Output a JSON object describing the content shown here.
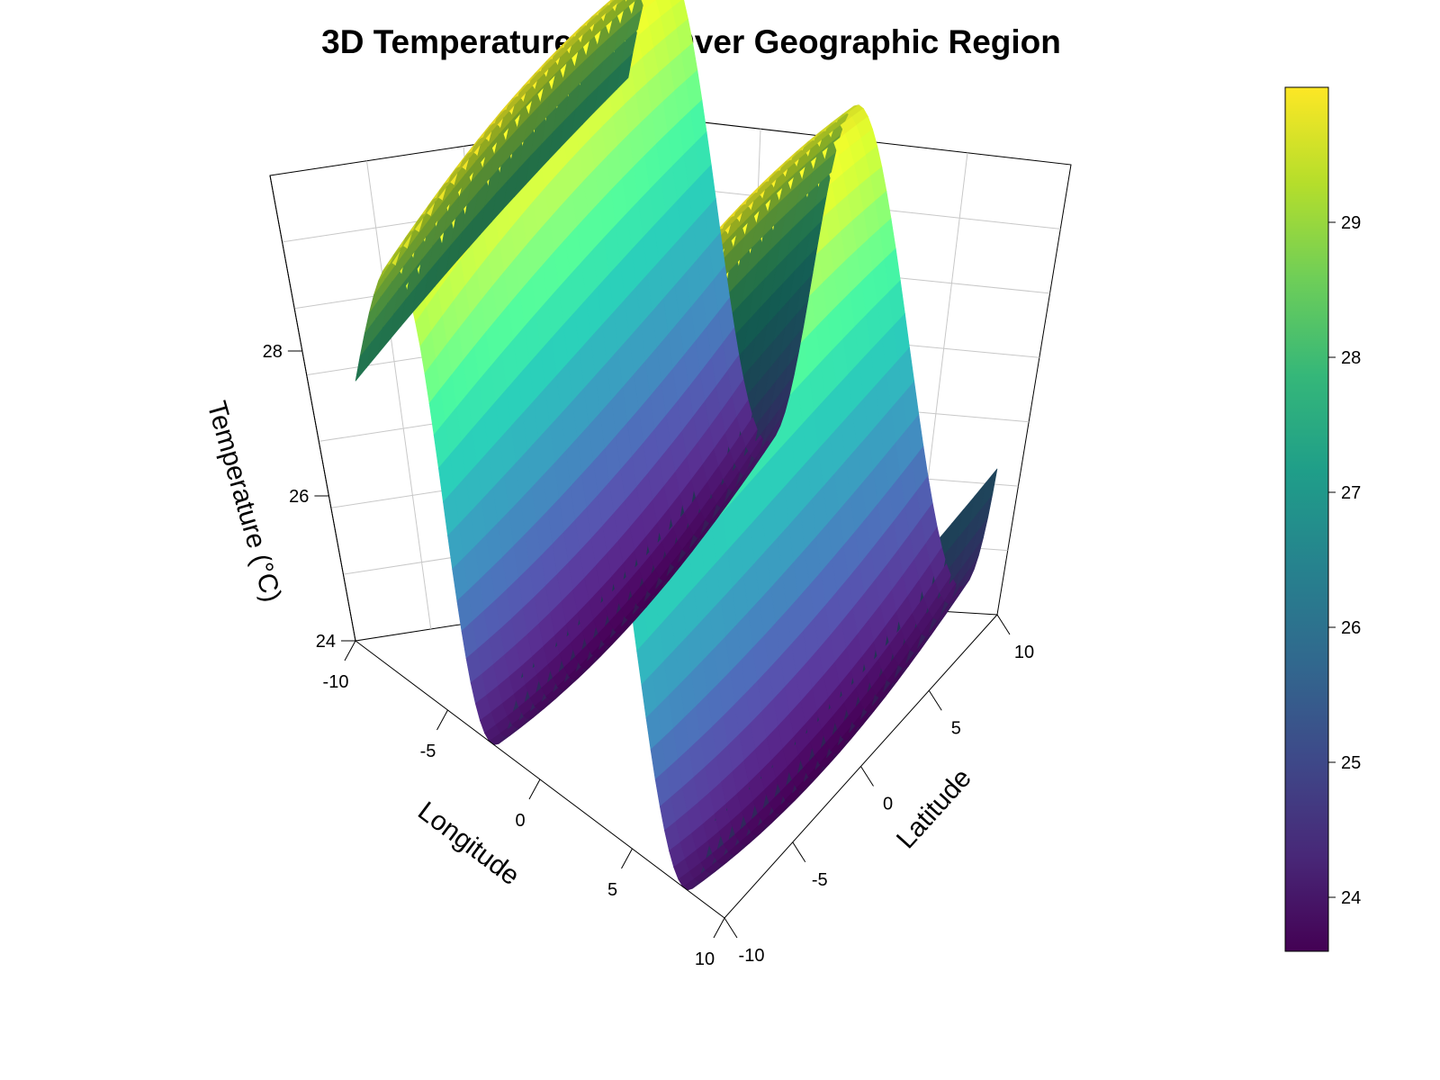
{
  "chart_data": {
    "type": "surface3d",
    "title": "3D Temperature Field Over Geographic Region",
    "xlabel": "Longitude",
    "ylabel": "Latitude",
    "zlabel": "Temperature (°C)",
    "x_range": [
      -10,
      10
    ],
    "y_range": [
      -10,
      10
    ],
    "z_range": [
      23.6,
      30.0
    ],
    "x_ticks": [
      -10,
      -5,
      0,
      5,
      10
    ],
    "y_ticks": [
      -10,
      -5,
      0,
      5,
      10
    ],
    "z_ticks": [
      24,
      26,
      28
    ],
    "surface_model": "T = 26.8 + 3.2*sin(0.6*lon)*cos(0.05*lat)",
    "surface_samples": [
      {
        "lon": -10,
        "temp": 26.2
      },
      {
        "lon": -7.9,
        "temp": 23.8
      },
      {
        "lon": -5,
        "temp": 27.2
      },
      {
        "lon": -2.6,
        "temp": 29.8
      },
      {
        "lon": 0,
        "temp": 26.8
      },
      {
        "lon": 2.6,
        "temp": 23.8
      },
      {
        "lon": 5,
        "temp": 27.2
      },
      {
        "lon": 7.9,
        "temp": 29.8
      },
      {
        "lon": 10,
        "temp": 25.9
      }
    ],
    "colorbar": {
      "palette": "viridis",
      "ticks": [
        24,
        25,
        26,
        27,
        28,
        29
      ],
      "range": [
        23.6,
        30.0
      ]
    },
    "grid": true
  },
  "colors": {
    "viridis": [
      "#440154",
      "#482878",
      "#3e4989",
      "#31688e",
      "#26828e",
      "#1f9e89",
      "#35b779",
      "#6ece58",
      "#b5de2b",
      "#fde725"
    ],
    "grid": "#c8c8c8",
    "frame": "#000000"
  }
}
